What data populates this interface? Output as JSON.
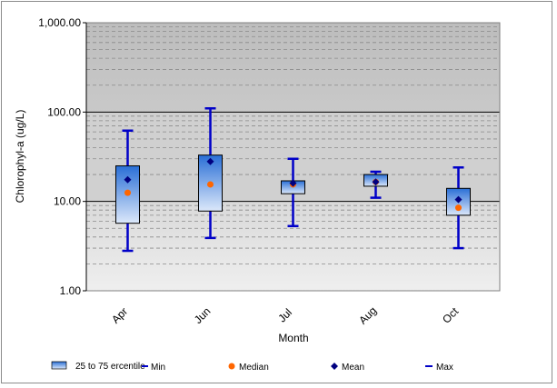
{
  "chart_data": {
    "type": "box",
    "title": "",
    "xlabel": "Month",
    "ylabel": "Chlorophyl-a (ug/L)",
    "yscale": "log",
    "ylim": [
      1,
      1000
    ],
    "y_tick_labels": [
      "1.00",
      "10.00",
      "100.00",
      "1,000.00"
    ],
    "y_tick_values": [
      1,
      10,
      100,
      1000
    ],
    "categories": [
      "Apr",
      "Jun",
      "Jul",
      "Aug",
      "Oct"
    ],
    "series": [
      {
        "name": "25 to 75 ercentile",
        "q1": [
          5.7,
          7.8,
          12.2,
          14.8,
          7.0
        ],
        "q3": [
          25,
          33,
          17,
          20,
          14
        ]
      },
      {
        "name": "Min",
        "values": [
          2.8,
          3.9,
          5.3,
          11,
          3.0
        ]
      },
      {
        "name": "Median",
        "values": [
          12.5,
          15.5,
          15.5,
          16.5,
          8.5
        ]
      },
      {
        "name": "Mean",
        "values": [
          17.5,
          28,
          16,
          16.5,
          10.5
        ]
      },
      {
        "name": "Max",
        "values": [
          62,
          110,
          30,
          21.5,
          24
        ]
      }
    ],
    "legend_position": "bottom",
    "grid": true,
    "colors": {
      "box_top": "#2a6fd6",
      "box_bottom": "#dce8fa",
      "whisker": "#0000c8",
      "median": "#ff6600",
      "mean": "#000080",
      "band_upper": "#c0c0c0",
      "band_lower": "#e8e8e8"
    }
  },
  "legend": {
    "box": "25 to 75 ercentile",
    "min": "Min",
    "median": "Median",
    "mean": "Mean",
    "max": "Max"
  }
}
